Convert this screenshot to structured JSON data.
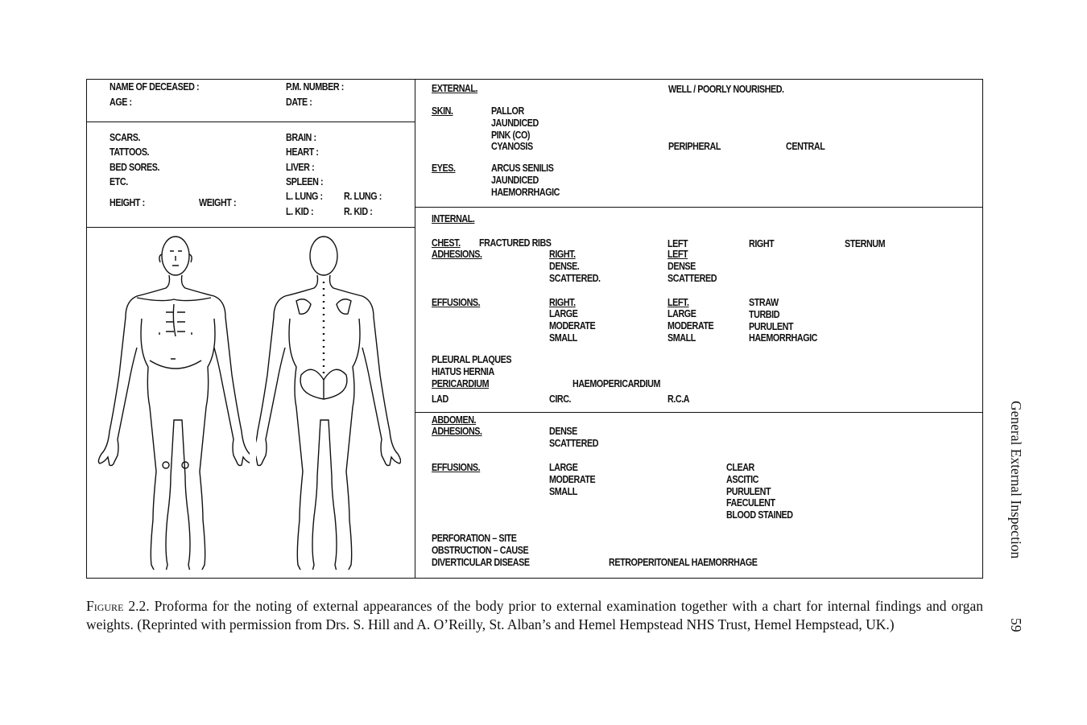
{
  "left_header": {
    "name_label": "NAME OF DECEASED :",
    "age_label": "AGE :",
    "pm_label": "P.M. NUMBER :",
    "date_label": "DATE :"
  },
  "left_organs": {
    "scars": "SCARS.",
    "tattoos": "TATTOOS.",
    "bed_sores": "BED SORES.",
    "etc": "ETC.",
    "height": "HEIGHT :",
    "weight": "WEIGHT :",
    "brain": "BRAIN :",
    "heart": "HEART :",
    "liver": "LIVER :",
    "spleen": "SPLEEN :",
    "l_lung": "L. LUNG :",
    "r_lung": "R. LUNG :",
    "l_kid": "L. KID :",
    "r_kid": "R. KID :"
  },
  "external": {
    "heading": "EXTERNAL.",
    "nourished": "WELL / POORLY NOURISHED.",
    "skin_label": "SKIN.",
    "skin_items": "PALLOR\nJAUNDICED\nPINK (CO)\nCYANOSIS",
    "peripheral": "PERIPHERAL",
    "central": "CENTRAL",
    "eyes_label": "EYES.",
    "eyes_items": "ARCUS SENILIS\nJAUNDICED\nHAEMORRHAGIC"
  },
  "internal": {
    "heading": "INTERNAL.",
    "chest": "CHEST.",
    "fractured_ribs": "FRACTURED RIBS",
    "adhesions": "ADHESIONS.",
    "left": "LEFT",
    "right": "RIGHT",
    "sternum": "STERNUM",
    "adh_right": "RIGHT.",
    "adh_right_items": "DENSE.\nSCATTERED.",
    "adh_left": "LEFT",
    "adh_left_items": "DENSE\nSCATTERED",
    "effusions": "EFFUSIONS.",
    "eff_right": "RIGHT.",
    "eff_right_items": "LARGE\nMODERATE\nSMALL",
    "eff_left": "LEFT.",
    "eff_left_items": "LARGE\nMODERATE\nSMALL",
    "eff_types": "STRAW\nTURBID\nPURULENT\nHAEMORRHAGIC",
    "pleural": "PLEURAL PLAQUES\nHIATUS HERNIA",
    "pericardium": "PERICARDIUM",
    "haemopericardium": "HAEMOPERICARDIUM",
    "lad": "LAD",
    "circ": "CIRC.",
    "rca": "R.C.A"
  },
  "abdomen": {
    "heading": "ABDOMEN.",
    "adhesions": "ADHESIONS.",
    "adh_items": "DENSE\nSCATTERED",
    "effusions": "EFFUSIONS.",
    "eff_sizes": "LARGE\nMODERATE\nSMALL",
    "eff_types": "CLEAR\nASCITIC\nPURULENT\nFAECULENT\nBLOOD STAINED",
    "perforation": "PERFORATION – SITE\nOBSTRUCTION – CAUSE\nDIVERTICULAR DISEASE",
    "retro": "RETROPERITONEAL HAEMORRHAGE"
  },
  "caption": {
    "figure_label": "Figure 2.2.",
    "text": "Proforma for the noting of external appearances of the body prior to external examination together with a chart for internal findings and organ weights. (Reprinted with permission from Drs. S. Hill and A. O’Reilly, St. Alban’s and Hemel Hempstead NHS Trust, Hemel Hempstead, UK.)"
  },
  "running_head": {
    "title": "General External Inspection",
    "page": "59"
  }
}
